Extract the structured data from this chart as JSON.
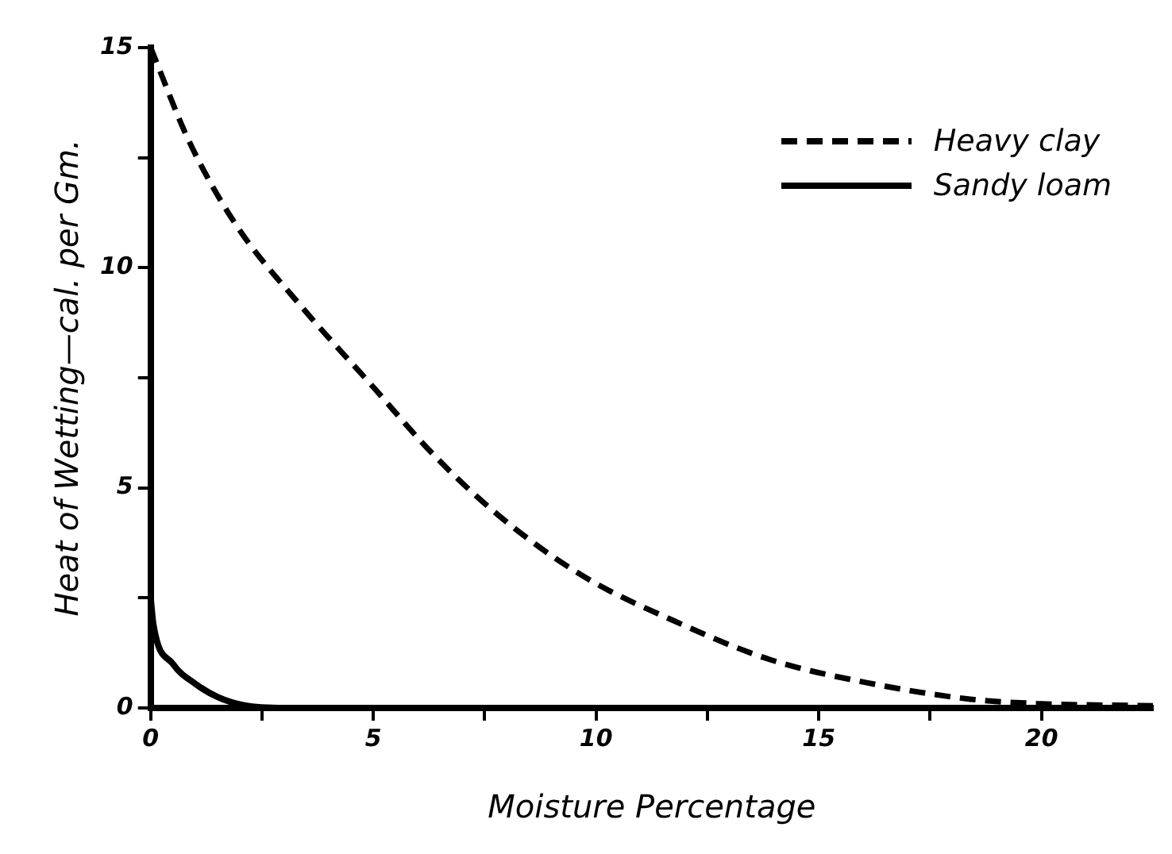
{
  "chart_data": {
    "type": "line",
    "xlabel": "Moisture Percentage",
    "ylabel": "Heat of Wetting—cal. per Gm.",
    "xlim": [
      0,
      22.5
    ],
    "ylim": [
      0,
      15
    ],
    "xticks": [
      0,
      {
        "value": 2.5,
        "label": null
      },
      5,
      {
        "value": 7.5,
        "label": null
      },
      10,
      {
        "value": 12.5,
        "label": null
      },
      15,
      {
        "value": 17.5,
        "label": null
      },
      20
    ],
    "yticks": [
      0,
      {
        "value": 2.5,
        "label": null
      },
      5,
      {
        "value": 7.5,
        "label": null
      },
      10,
      {
        "value": 12.5,
        "label": null
      },
      15
    ],
    "grid": false,
    "legend": "top right",
    "marker": "none",
    "series": [
      {
        "name": "Heavy clay",
        "color": "#000000",
        "line_style": "dashed",
        "x": [
          0,
          0.85,
          1.9,
          3.4,
          4.9,
          6.4,
          7.9,
          9.7,
          11.7,
          13.9,
          16.2,
          18.4,
          19.9,
          22.5
        ],
        "values": [
          15,
          12.9,
          11,
          9.1,
          7.4,
          5.7,
          4.3,
          3,
          2,
          1.1,
          0.55,
          0.2,
          0.1,
          0.05
        ]
      },
      {
        "name": "Sandy loam",
        "color": "#000000",
        "line_style": "solid",
        "x": [
          0,
          0.06,
          0.5,
          1,
          1.5,
          2.1,
          3,
          22.5
        ],
        "values": [
          2.5,
          1.9,
          1,
          0.55,
          0.25,
          0.06,
          0,
          0
        ]
      }
    ]
  }
}
